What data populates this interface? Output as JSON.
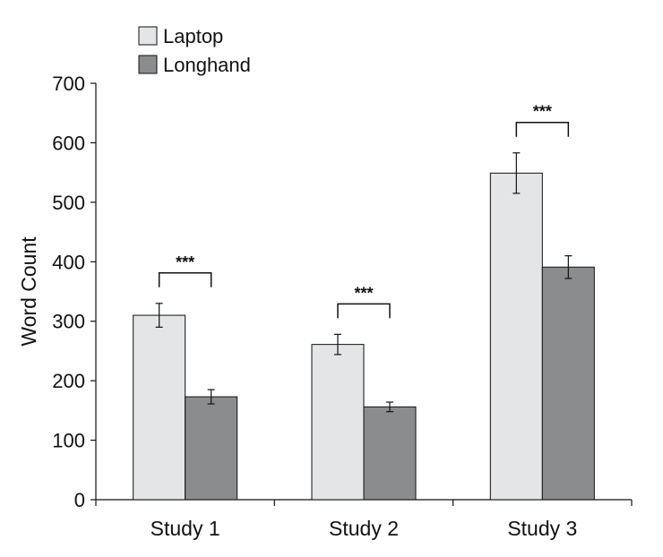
{
  "chart_data": {
    "type": "bar",
    "categories": [
      "Study 1",
      "Study 2",
      "Study 3"
    ],
    "series": [
      {
        "name": "Laptop",
        "values": [
          310,
          261,
          549
        ],
        "errors": [
          20,
          17,
          34
        ],
        "color": "#e4e5e6"
      },
      {
        "name": "Longhand",
        "values": [
          173,
          156,
          391
        ],
        "errors": [
          12,
          8,
          19
        ],
        "color": "#8b8c8e"
      }
    ],
    "significance": [
      "***",
      "***",
      "***"
    ],
    "xlabel": "",
    "ylabel": "Word Count",
    "ylim": [
      0,
      700
    ],
    "yticks": [
      0,
      100,
      200,
      300,
      400,
      500,
      600,
      700
    ],
    "grid": false,
    "legend_position": "top-left"
  }
}
